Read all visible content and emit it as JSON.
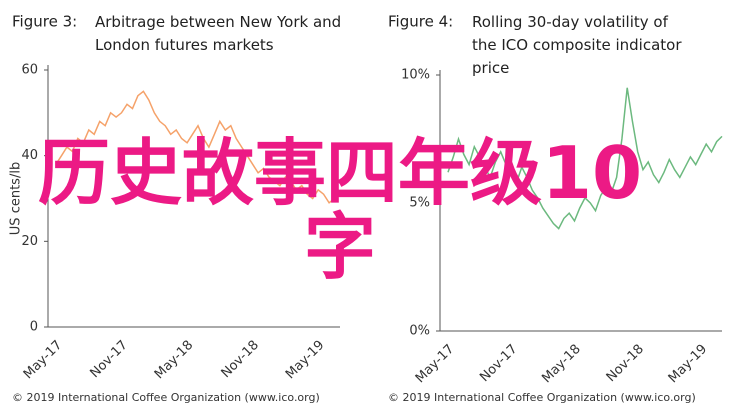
{
  "chart_data": [
    {
      "type": "line",
      "figure_label": "Figure 3:",
      "title": "Arbitrage between New York and London futures markets",
      "ylabel": "US cents/lb",
      "source": "© 2019 International Coffee Organization (www.ico.org)",
      "categories": [
        "May-17",
        null,
        null,
        null,
        null,
        null,
        null,
        null,
        null,
        null,
        null,
        null,
        "Nov-17",
        null,
        null,
        null,
        null,
        null,
        null,
        null,
        null,
        null,
        null,
        null,
        "May-18",
        null,
        null,
        null,
        null,
        null,
        null,
        null,
        null,
        null,
        null,
        null,
        "Nov-18",
        null,
        null,
        null,
        null,
        null,
        null,
        null,
        null,
        null,
        null,
        null,
        "May-19",
        null,
        null,
        null,
        null
      ],
      "series": [
        {
          "color": "#f5a26a",
          "values": [
            38,
            40,
            42,
            41,
            44,
            43,
            46,
            45,
            48,
            47,
            50,
            49,
            50,
            52,
            51,
            54,
            55,
            53,
            50,
            48,
            47,
            45,
            46,
            44,
            43,
            45,
            47,
            44,
            42,
            45,
            48,
            46,
            47,
            44,
            42,
            40,
            38,
            36,
            37,
            35,
            34,
            33,
            35,
            34,
            32,
            33,
            31,
            30,
            32,
            31,
            29,
            30,
            31
          ]
        }
      ],
      "ylim": [
        0,
        60
      ],
      "yticks": [
        0,
        20,
        40,
        60
      ]
    },
    {
      "type": "line",
      "figure_label": "Figure 4:",
      "title": "Rolling 30-day volatility of the ICO composite indicator price",
      "source": "© 2019 International Coffee Organization (www.ico.org)",
      "categories": [
        "May-17",
        null,
        null,
        null,
        null,
        null,
        null,
        null,
        null,
        null,
        null,
        null,
        "Nov-17",
        null,
        null,
        null,
        null,
        null,
        null,
        null,
        null,
        null,
        null,
        null,
        "May-18",
        null,
        null,
        null,
        null,
        null,
        null,
        null,
        null,
        null,
        null,
        null,
        "Nov-18",
        null,
        null,
        null,
        null,
        null,
        null,
        null,
        null,
        null,
        null,
        null,
        "May-19",
        null,
        null,
        null,
        null
      ],
      "series": [
        {
          "color": "#6cb97f",
          "values": [
            6.2,
            6.8,
            7.5,
            6.9,
            6.5,
            7.2,
            6.8,
            6.4,
            6.0,
            6.6,
            7.0,
            6.5,
            6.2,
            5.8,
            6.4,
            6.0,
            5.5,
            5.2,
            4.8,
            4.5,
            4.2,
            4.0,
            4.4,
            4.6,
            4.3,
            4.8,
            5.2,
            5.0,
            4.7,
            5.3,
            5.6,
            5.4,
            6.0,
            7.5,
            9.5,
            8.2,
            7.0,
            6.3,
            6.6,
            6.1,
            5.8,
            6.2,
            6.7,
            6.3,
            6.0,
            6.4,
            6.8,
            6.5,
            6.9,
            7.3,
            7.0,
            7.4,
            7.6
          ]
        }
      ],
      "ylim": [
        0,
        10
      ],
      "yticks": [
        {
          "value": 0,
          "label": "0%"
        },
        {
          "value": 5,
          "label": "5%"
        },
        {
          "value": 10,
          "label": "10%"
        }
      ]
    }
  ],
  "overlay_text": "历史故事四年级10字"
}
